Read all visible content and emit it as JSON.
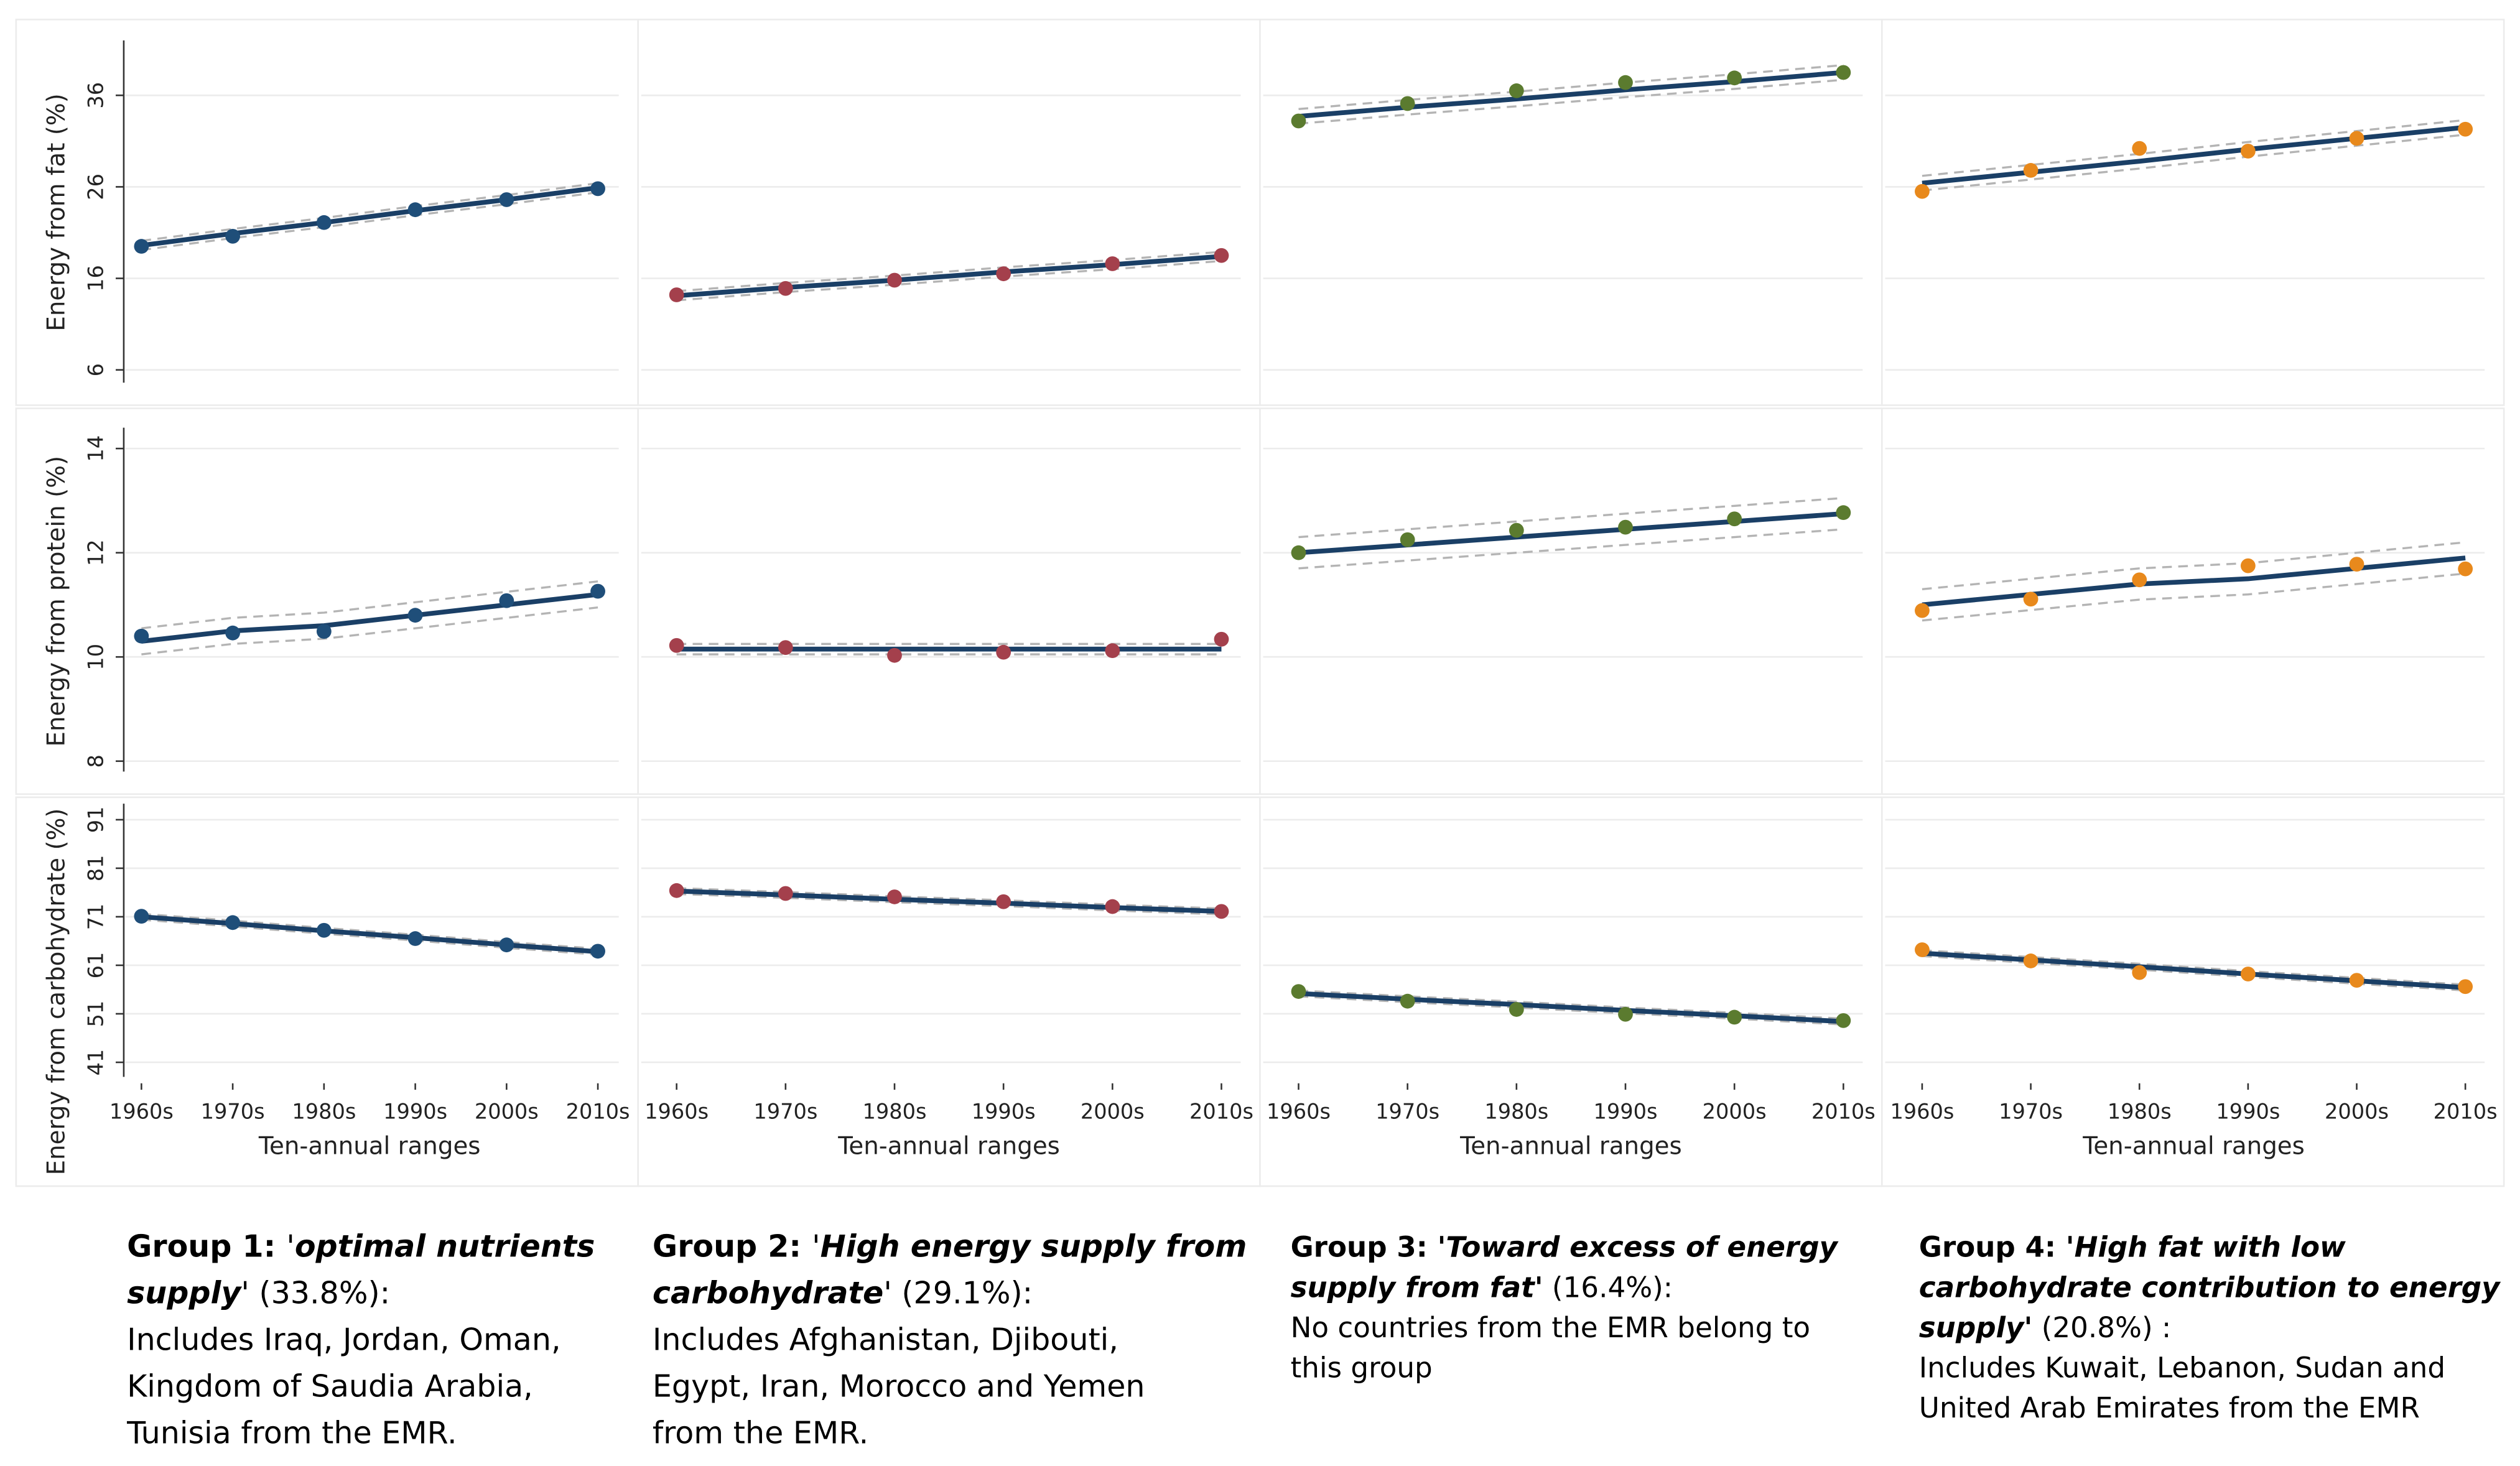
{
  "chart_data": [
    {
      "type": "line",
      "y_label": "Energy from fat (%)",
      "ylim": [
        4.6,
        42
      ],
      "yticks": [
        6,
        16,
        26,
        36
      ],
      "series": [
        {
          "mode": "markers",
          "color": "#1f4e79",
          "values": [
            19.5,
            20.6,
            22.1,
            23.5,
            24.6,
            25.8
          ]
        },
        {
          "mode": "dashed",
          "color": "#b4b4b4",
          "values": [
            19.1,
            20.4,
            21.6,
            22.9,
            24.1,
            25.4
          ]
        },
        {
          "mode": "dashed",
          "color": "#b4b4b4",
          "values": [
            20.1,
            21.4,
            22.6,
            23.9,
            25.1,
            26.4
          ]
        },
        {
          "mode": "solid",
          "color": "#1a3f66",
          "values": [
            19.6,
            20.9,
            22.1,
            23.4,
            24.6,
            25.9
          ]
        }
      ]
    },
    {
      "type": "line",
      "ylim": [
        4.6,
        42
      ],
      "series": [
        {
          "mode": "markers",
          "color": "#a4404c",
          "values": [
            14.2,
            14.9,
            15.8,
            16.5,
            17.6,
            18.5
          ]
        },
        {
          "mode": "dashed",
          "color": "#b4b4b4",
          "values": [
            13.6,
            14.5,
            15.3,
            16.2,
            17.0,
            17.9
          ]
        },
        {
          "mode": "dashed",
          "color": "#b4b4b4",
          "values": [
            14.6,
            15.5,
            16.3,
            17.2,
            18.0,
            18.9
          ]
        },
        {
          "mode": "solid",
          "color": "#1a3f66",
          "values": [
            14.1,
            15.0,
            15.8,
            16.7,
            17.5,
            18.4
          ]
        }
      ]
    },
    {
      "type": "line",
      "ylim": [
        4.6,
        42
      ],
      "series": [
        {
          "mode": "markers",
          "color": "#5b7b2f",
          "values": [
            33.2,
            35.1,
            36.5,
            37.4,
            37.9,
            38.5
          ]
        },
        {
          "mode": "dashed",
          "color": "#b4b4b4",
          "values": [
            32.9,
            33.9,
            34.8,
            35.8,
            36.7,
            37.7
          ]
        },
        {
          "mode": "dashed",
          "color": "#b4b4b4",
          "values": [
            34.5,
            35.5,
            36.4,
            37.4,
            38.3,
            39.3
          ]
        },
        {
          "mode": "solid",
          "color": "#1a3f66",
          "values": [
            33.7,
            34.7,
            35.6,
            36.6,
            37.5,
            38.5
          ]
        }
      ]
    },
    {
      "type": "line",
      "ylim": [
        4.6,
        42
      ],
      "series": [
        {
          "mode": "markers",
          "color": "#e8891c",
          "values": [
            25.5,
            27.8,
            30.2,
            29.9,
            31.3,
            32.3
          ]
        },
        {
          "mode": "dashed",
          "color": "#b4b4b4",
          "values": [
            25.6,
            26.8,
            28.0,
            29.3,
            30.5,
            31.7
          ]
        },
        {
          "mode": "dashed",
          "color": "#b4b4b4",
          "values": [
            27.2,
            28.4,
            29.6,
            30.9,
            32.1,
            33.3
          ]
        },
        {
          "mode": "solid",
          "color": "#1a3f66",
          "values": [
            26.4,
            27.6,
            28.8,
            30.1,
            31.3,
            32.5
          ]
        }
      ]
    },
    {
      "type": "line",
      "y_label": "Energy from protein (%)",
      "ylim": [
        7.8,
        14.4
      ],
      "yticks": [
        8,
        10,
        12,
        14
      ],
      "series": [
        {
          "mode": "markers",
          "color": "#1f4e79",
          "values": [
            10.4,
            10.46,
            10.49,
            10.8,
            11.08,
            11.26
          ]
        },
        {
          "mode": "dashed",
          "color": "#b4b4b4",
          "values": [
            10.05,
            10.25,
            10.35,
            10.55,
            10.75,
            10.95
          ]
        },
        {
          "mode": "dashed",
          "color": "#b4b4b4",
          "values": [
            10.55,
            10.75,
            10.85,
            11.05,
            11.25,
            11.45
          ]
        },
        {
          "mode": "solid",
          "color": "#1a3f66",
          "values": [
            10.3,
            10.5,
            10.6,
            10.8,
            11.0,
            11.2
          ]
        }
      ]
    },
    {
      "type": "line",
      "ylim": [
        7.8,
        14.4
      ],
      "series": [
        {
          "mode": "markers",
          "color": "#a4404c",
          "values": [
            10.22,
            10.18,
            10.03,
            10.09,
            10.12,
            10.34
          ]
        },
        {
          "mode": "dashed",
          "color": "#b4b4b4",
          "values": [
            10.05,
            10.05,
            10.05,
            10.05,
            10.05,
            10.05
          ]
        },
        {
          "mode": "dashed",
          "color": "#b4b4b4",
          "values": [
            10.25,
            10.25,
            10.25,
            10.25,
            10.25,
            10.25
          ]
        },
        {
          "mode": "solid",
          "color": "#1a3f66",
          "values": [
            10.15,
            10.15,
            10.15,
            10.15,
            10.15,
            10.15
          ]
        }
      ]
    },
    {
      "type": "line",
      "ylim": [
        7.8,
        14.4
      ],
      "series": [
        {
          "mode": "markers",
          "color": "#5b7b2f",
          "values": [
            12.0,
            12.25,
            12.43,
            12.49,
            12.65,
            12.77
          ]
        },
        {
          "mode": "dashed",
          "color": "#b4b4b4",
          "values": [
            11.7,
            11.85,
            12.0,
            12.15,
            12.3,
            12.45
          ]
        },
        {
          "mode": "dashed",
          "color": "#b4b4b4",
          "values": [
            12.3,
            12.45,
            12.6,
            12.75,
            12.9,
            13.05
          ]
        },
        {
          "mode": "solid",
          "color": "#1a3f66",
          "values": [
            12.0,
            12.15,
            12.3,
            12.45,
            12.6,
            12.75
          ]
        }
      ]
    },
    {
      "type": "line",
      "ylim": [
        7.8,
        14.4
      ],
      "series": [
        {
          "mode": "markers",
          "color": "#e8891c",
          "values": [
            10.89,
            11.11,
            11.48,
            11.75,
            11.78,
            11.69
          ]
        },
        {
          "mode": "dashed",
          "color": "#b4b4b4",
          "values": [
            10.7,
            10.9,
            11.1,
            11.2,
            11.4,
            11.6
          ]
        },
        {
          "mode": "dashed",
          "color": "#b4b4b4",
          "values": [
            11.3,
            11.5,
            11.7,
            11.8,
            12.0,
            12.2
          ]
        },
        {
          "mode": "solid",
          "color": "#1a3f66",
          "values": [
            11.0,
            11.2,
            11.4,
            11.5,
            11.7,
            11.9
          ]
        }
      ]
    },
    {
      "type": "line",
      "y_label": "Energy from carbohydrate (%)",
      "ylim": [
        38,
        94.3
      ],
      "yticks": [
        41,
        51,
        61,
        71,
        81,
        91
      ],
      "categories": [
        "1960s",
        "1970s",
        "1980s",
        "1990s",
        "2000s",
        "2010s"
      ],
      "x_label": "Ten-annual ranges",
      "series": [
        {
          "mode": "markers",
          "color": "#1f4e79",
          "values": [
            71.1,
            69.8,
            68.2,
            66.5,
            65.2,
            63.9
          ]
        },
        {
          "mode": "dashed",
          "color": "#b4b4b4",
          "values": [
            70.4,
            69.0,
            67.5,
            66.1,
            64.6,
            63.2
          ]
        },
        {
          "mode": "dashed",
          "color": "#b4b4b4",
          "values": [
            71.6,
            70.2,
            68.7,
            67.3,
            65.8,
            64.4
          ]
        },
        {
          "mode": "solid",
          "color": "#1a3f66",
          "values": [
            71.0,
            69.6,
            68.1,
            66.7,
            65.2,
            63.8
          ]
        }
      ]
    },
    {
      "type": "line",
      "ylim": [
        38,
        94.3
      ],
      "categories": [
        "1960s",
        "1970s",
        "1980s",
        "1990s",
        "2000s",
        "2010s"
      ],
      "x_label": "Ten-annual ranges",
      "series": [
        {
          "mode": "markers",
          "color": "#a4404c",
          "values": [
            76.4,
            75.8,
            75.1,
            74.1,
            73.1,
            72.1
          ]
        },
        {
          "mode": "dashed",
          "color": "#b4b4b4",
          "values": [
            75.7,
            74.9,
            74.0,
            73.2,
            72.3,
            71.5
          ]
        },
        {
          "mode": "dashed",
          "color": "#b4b4b4",
          "values": [
            76.9,
            76.1,
            75.2,
            74.4,
            73.5,
            72.7
          ]
        },
        {
          "mode": "solid",
          "color": "#1a3f66",
          "values": [
            76.3,
            75.5,
            74.6,
            73.8,
            72.9,
            72.1
          ]
        }
      ]
    },
    {
      "type": "line",
      "ylim": [
        38,
        94.3
      ],
      "categories": [
        "1960s",
        "1970s",
        "1980s",
        "1990s",
        "2000s",
        "2010s"
      ],
      "x_label": "Ten-annual ranges",
      "series": [
        {
          "mode": "markers",
          "color": "#5b7b2f",
          "values": [
            55.6,
            53.6,
            51.9,
            50.9,
            50.3,
            49.6
          ]
        },
        {
          "mode": "dashed",
          "color": "#b4b4b4",
          "values": [
            54.6,
            53.4,
            52.3,
            51.1,
            50.0,
            48.8
          ]
        },
        {
          "mode": "dashed",
          "color": "#b4b4b4",
          "values": [
            55.8,
            54.6,
            53.5,
            52.3,
            51.2,
            50.0
          ]
        },
        {
          "mode": "solid",
          "color": "#1a3f66",
          "values": [
            55.2,
            54.0,
            52.9,
            51.7,
            50.6,
            49.4
          ]
        }
      ]
    },
    {
      "type": "line",
      "ylim": [
        38,
        94.3
      ],
      "categories": [
        "1960s",
        "1970s",
        "1980s",
        "1990s",
        "2000s",
        "2010s"
      ],
      "x_label": "Ten-annual ranges",
      "series": [
        {
          "mode": "markers",
          "color": "#e8891c",
          "values": [
            64.2,
            61.9,
            59.5,
            59.2,
            57.9,
            56.6
          ]
        },
        {
          "mode": "dashed",
          "color": "#b4b4b4",
          "values": [
            62.9,
            61.5,
            60.1,
            58.6,
            57.2,
            55.8
          ]
        },
        {
          "mode": "dashed",
          "color": "#b4b4b4",
          "values": [
            64.1,
            62.7,
            61.3,
            59.8,
            58.4,
            57.0
          ]
        },
        {
          "mode": "solid",
          "color": "#1a3f66",
          "values": [
            63.5,
            62.1,
            60.7,
            59.2,
            57.8,
            56.4
          ]
        }
      ]
    }
  ],
  "captions": [
    [
      [
        {
          "text": "Group 1: ",
          "style": "bold"
        },
        {
          "text": "'",
          "style": "normal"
        },
        {
          "text": "optimal nutrients",
          "style": "bolditalic"
        }
      ],
      [
        {
          "text": "supply",
          "style": "bolditalic"
        },
        {
          "text": "' (33.8%):",
          "style": "normal"
        }
      ],
      [
        {
          "text": "Includes Iraq, Jordan, Oman,",
          "style": "normal"
        }
      ],
      [
        {
          "text": "Kingdom of Saudia Arabia,",
          "style": "normal"
        }
      ],
      [
        {
          "text": "Tunisia from the EMR.",
          "style": "normal"
        }
      ]
    ],
    [
      [
        {
          "text": "Group 2: ",
          "style": "bold"
        },
        {
          "text": "'",
          "style": "normal"
        },
        {
          "text": "High energy supply from",
          "style": "bolditalic"
        }
      ],
      [
        {
          "text": "carbohydrate",
          "style": "bolditalic"
        },
        {
          "text": "' (29.1%):",
          "style": "normal"
        }
      ],
      [
        {
          "text": "Includes Afghanistan, Djibouti,",
          "style": "normal"
        }
      ],
      [
        {
          "text": "Egypt, Iran, Morocco and Yemen",
          "style": "normal"
        }
      ],
      [
        {
          "text": "from the EMR.",
          "style": "normal"
        }
      ]
    ],
    [
      [
        {
          "text": "Group 3: '",
          "style": "bold"
        },
        {
          "text": "Toward excess of energy",
          "style": "bolditalic"
        }
      ],
      [
        {
          "text": "supply from fat'",
          "style": "bolditalic"
        },
        {
          "text": " (16.4%):",
          "style": "normal"
        }
      ],
      [
        {
          "text": "No countries from the EMR belong to",
          "style": "normal"
        }
      ],
      [
        {
          "text": "this group",
          "style": "normal"
        }
      ]
    ],
    [
      [
        {
          "text": "Group 4: '",
          "style": "bold"
        },
        {
          "text": "High fat with low",
          "style": "bolditalic"
        }
      ],
      [
        {
          "text": "carbohydrate contribution to energy",
          "style": "bolditalic"
        }
      ],
      [
        {
          "text": "supply'",
          "style": "bolditalic"
        },
        {
          "text": " (20.8%) :",
          "style": "normal"
        }
      ],
      [
        {
          "text": "Includes Kuwait, Lebanon, Sudan and",
          "style": "normal"
        }
      ],
      [
        {
          "text": "United Arab Emirates from the EMR",
          "style": "normal"
        }
      ]
    ]
  ]
}
